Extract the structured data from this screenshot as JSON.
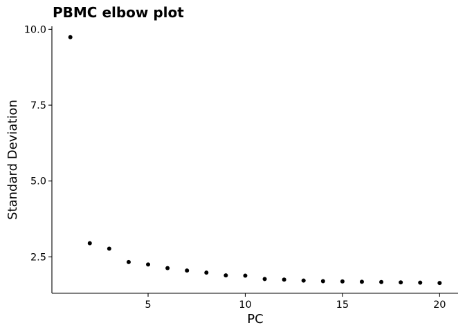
{
  "chart_data": {
    "type": "scatter",
    "title": "PBMC elbow plot",
    "xlabel": "PC",
    "ylabel": "Standard Deviation",
    "x": [
      1,
      2,
      3,
      4,
      5,
      6,
      7,
      8,
      9,
      10,
      11,
      12,
      13,
      14,
      15,
      16,
      17,
      18,
      19,
      20
    ],
    "y": [
      9.74,
      2.95,
      2.77,
      2.33,
      2.25,
      2.13,
      2.05,
      1.98,
      1.89,
      1.88,
      1.77,
      1.75,
      1.72,
      1.7,
      1.69,
      1.68,
      1.67,
      1.66,
      1.65,
      1.64
    ],
    "xlim": [
      0.05,
      20.95
    ],
    "ylim": [
      1.3,
      10.1
    ],
    "x_ticks": [
      5,
      10,
      15,
      20
    ],
    "x_tick_labels": [
      "5",
      "10",
      "15",
      "20"
    ],
    "y_ticks": [
      2.5,
      5.0,
      7.5,
      10.0
    ],
    "y_tick_labels": [
      "2.5",
      "5.0",
      "7.5",
      "10.0"
    ],
    "grid": false,
    "legend": "none",
    "point_color": "#000000"
  }
}
